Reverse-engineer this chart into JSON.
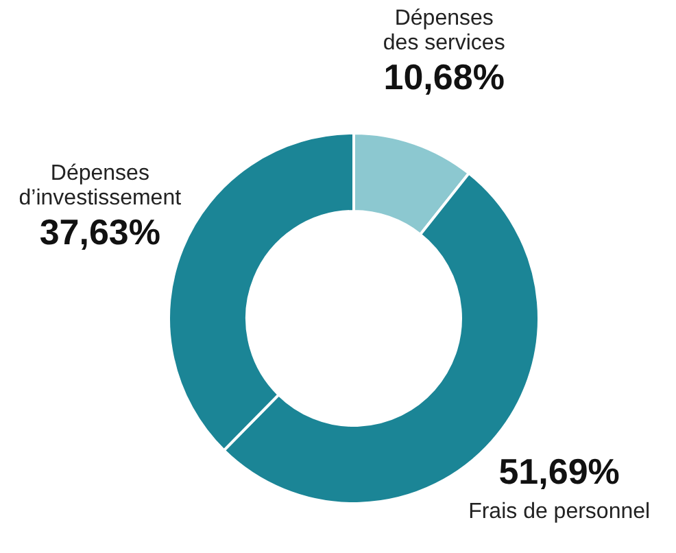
{
  "chart_data": {
    "type": "donut",
    "categories": [
      "Dépenses des services",
      "Frais de personnel",
      "Dépenses d’investissement"
    ],
    "values": [
      10.68,
      51.69,
      37.63
    ],
    "colors": [
      "#8cc8d0",
      "#1b8596",
      "#1b8596"
    ],
    "value_labels": [
      "10,68%",
      "51,69%",
      "37,63%"
    ]
  }
}
